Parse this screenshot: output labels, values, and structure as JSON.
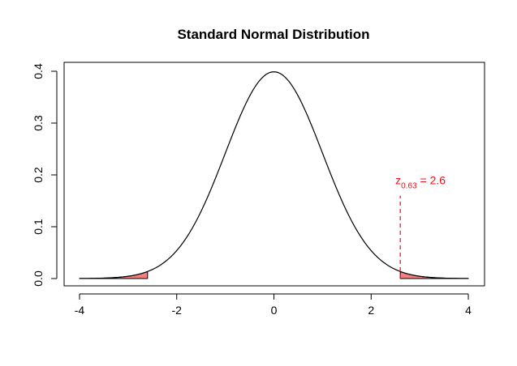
{
  "chart_data": {
    "type": "line",
    "title": "Standard Normal Distribution",
    "xlabel": "",
    "ylabel": "",
    "xlim": [
      -4,
      4
    ],
    "ylim": [
      0,
      0.4
    ],
    "x_ticks": [
      -4,
      -2,
      0,
      2,
      4
    ],
    "x_tick_labels": [
      "-4",
      "-2",
      "0",
      "2",
      "4"
    ],
    "y_ticks": [
      0.0,
      0.1,
      0.2,
      0.3,
      0.4
    ],
    "y_tick_labels": [
      "0.0",
      "0.1",
      "0.2",
      "0.3",
      "0.4"
    ],
    "grid": false,
    "series": [
      {
        "distribution": "standard normal density",
        "mean": 0,
        "sd": 1,
        "x_range": [
          -4,
          4
        ],
        "color": "#000000"
      }
    ],
    "shaded_regions": [
      {
        "from": -4,
        "to": -2.6,
        "fill": "#f47f7f",
        "stroke": "#000000"
      },
      {
        "from": 2.6,
        "to": 4,
        "fill": "#f47f7f",
        "stroke": "#000000"
      }
    ],
    "annotation": {
      "x": 2.6,
      "line_top_y": 0.16,
      "label_main": "z",
      "label_subscript": "0.63",
      "label_rest": " = 2.6",
      "color": "#e8101a"
    }
  }
}
